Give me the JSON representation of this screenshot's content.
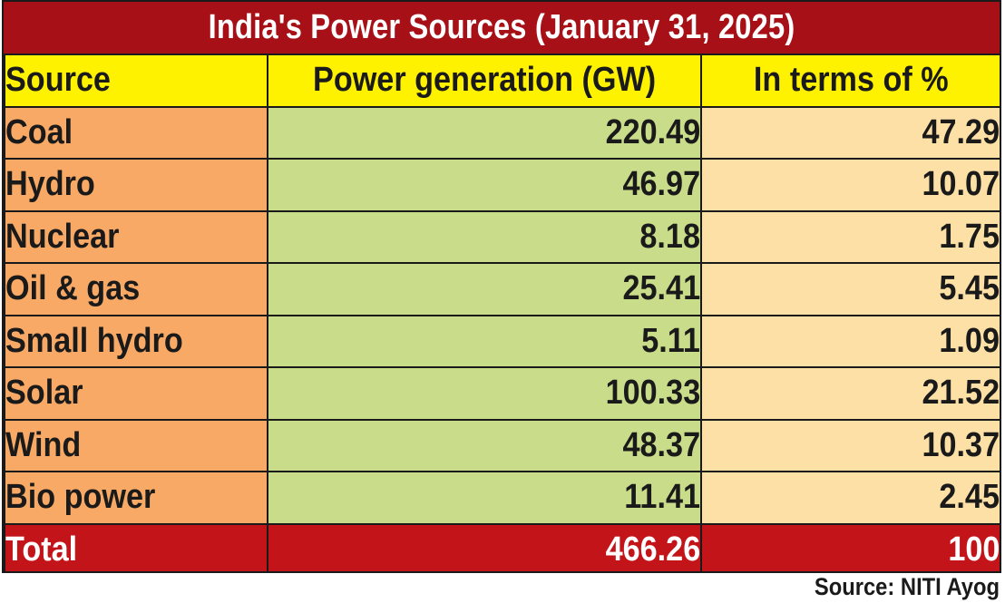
{
  "title": "India's Power Sources (January 31, 2025)",
  "headers": {
    "source": "Source",
    "generation": "Power generation (GW)",
    "percent": "In terms of %"
  },
  "rows": [
    {
      "source": "Coal",
      "generation": "220.49",
      "percent": "47.29"
    },
    {
      "source": "Hydro",
      "generation": "46.97",
      "percent": "10.07"
    },
    {
      "source": "Nuclear",
      "generation": "8.18",
      "percent": "1.75"
    },
    {
      "source": "Oil & gas",
      "generation": "25.41",
      "percent": "5.45"
    },
    {
      "source": "Small hydro",
      "generation": "5.11",
      "percent": "1.09"
    },
    {
      "source": "Solar",
      "generation": "100.33",
      "percent": "21.52"
    },
    {
      "source": "Wind",
      "generation": "48.37",
      "percent": "10.37"
    },
    {
      "source": "Bio power",
      "generation": "11.41",
      "percent": "2.45"
    }
  ],
  "total": {
    "source": "Total",
    "generation": "466.26",
    "percent": "100"
  },
  "source_note": "Source: NITI Ayog",
  "colors": {
    "title_bg": "#a61016",
    "header_bg": "#fff200",
    "source_col_bg": "#f7a965",
    "generation_col_bg": "#c9dc8a",
    "percent_col_bg": "#fde0a6",
    "total_bg": "#c3141a"
  },
  "chart_data": {
    "type": "table",
    "title": "India's Power Sources (January 31, 2025)",
    "columns": [
      "Source",
      "Power generation (GW)",
      "In terms of %"
    ],
    "categories": [
      "Coal",
      "Hydro",
      "Nuclear",
      "Oil & gas",
      "Small hydro",
      "Solar",
      "Wind",
      "Bio power"
    ],
    "series": [
      {
        "name": "Power generation (GW)",
        "values": [
          220.49,
          46.97,
          8.18,
          25.41,
          5.11,
          100.33,
          48.37,
          11.41
        ]
      },
      {
        "name": "In terms of %",
        "values": [
          47.29,
          10.07,
          1.75,
          5.45,
          1.09,
          21.52,
          10.37,
          2.45
        ]
      }
    ],
    "totals": {
      "Power generation (GW)": 466.26,
      "In terms of %": 100
    }
  }
}
